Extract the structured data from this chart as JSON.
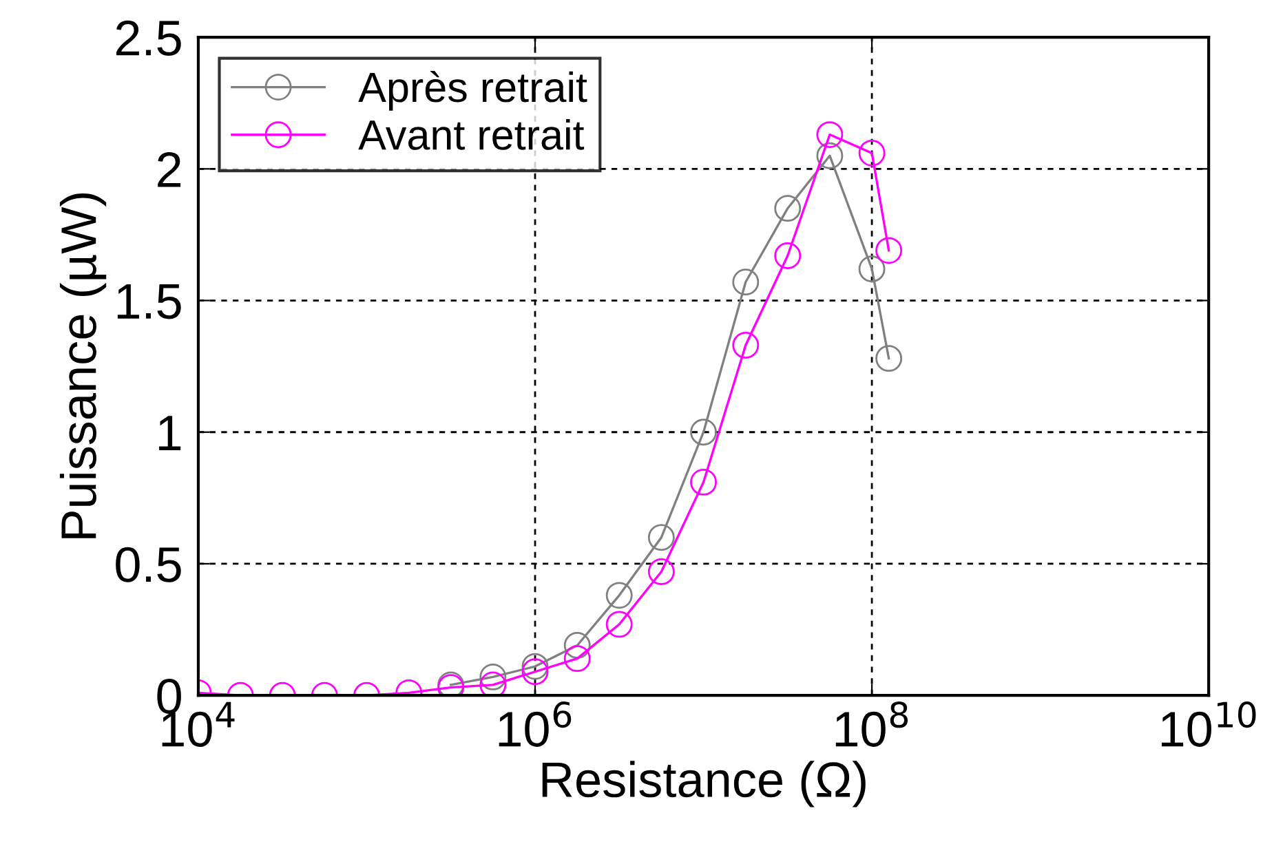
{
  "chart_data": {
    "type": "line",
    "xlabel": "Resistance (Ω)",
    "ylabel": "Puissance (µW)",
    "log": "x",
    "grid": true,
    "legend": "top left",
    "marker": "circle",
    "line_style": "solid",
    "x": [
      10000,
      17800,
      31600,
      56200,
      100000,
      178000,
      316000,
      562000,
      1000000,
      1780000,
      3160000,
      5620000,
      10000000,
      17800000,
      31600000,
      56200000,
      100000000,
      126000000
    ],
    "xlim": [
      10000,
      10000000000
    ],
    "xticks": [
      {
        "value": 10000,
        "label": "10$^{4}$"
      },
      {
        "value": 1000000,
        "label": "10$^{6}$"
      },
      {
        "value": 100000000,
        "label": "10$^{8}$"
      },
      {
        "value": 10000000000,
        "label": "10$^{10}$"
      }
    ],
    "ylim": [
      0,
      2.5
    ],
    "yticks": [
      0,
      0.5,
      1,
      1.5,
      2,
      2.5
    ],
    "series": [
      {
        "name": "Après retrait",
        "color": "#808080",
        "values": [
          null,
          null,
          null,
          null,
          null,
          null,
          0.04,
          0.07,
          0.11,
          0.19,
          0.38,
          0.6,
          1.0,
          1.57,
          1.85,
          2.05,
          1.62,
          1.28
        ]
      },
      {
        "name": "Avant retrait",
        "color": "#ff00ff",
        "values": [
          0.01,
          0,
          0,
          0,
          0,
          0.01,
          0.03,
          0.04,
          0.09,
          0.14,
          0.27,
          0.47,
          0.81,
          1.33,
          1.67,
          2.13,
          2.06,
          1.69
        ]
      }
    ]
  }
}
